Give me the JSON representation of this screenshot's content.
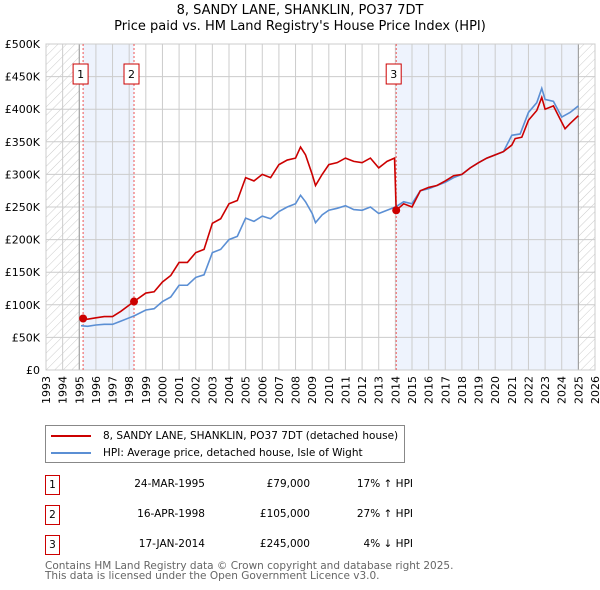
{
  "chart_data": {
    "type": "line",
    "title": "8, SANDY LANE, SHANKLIN, PO37 7DT",
    "subtitle": "Price paid vs. HM Land Registry's House Price Index (HPI)",
    "xlim": [
      1993,
      2026
    ],
    "ylim": [
      0,
      500000
    ],
    "x_ticks": [
      "1993",
      "1994",
      "1995",
      "1996",
      "1997",
      "1998",
      "1999",
      "2000",
      "2001",
      "2002",
      "2003",
      "2004",
      "2005",
      "2006",
      "2007",
      "2008",
      "2009",
      "2010",
      "2011",
      "2012",
      "2013",
      "2014",
      "2015",
      "2016",
      "2017",
      "2018",
      "2019",
      "2020",
      "2021",
      "2022",
      "2023",
      "2024",
      "2025",
      "2026"
    ],
    "y_ticks": [
      {
        "v": 0,
        "label": "£0"
      },
      {
        "v": 50000,
        "label": "£50K"
      },
      {
        "v": 100000,
        "label": "£100K"
      },
      {
        "v": 150000,
        "label": "£150K"
      },
      {
        "v": 200000,
        "label": "£200K"
      },
      {
        "v": 250000,
        "label": "£250K"
      },
      {
        "v": 300000,
        "label": "£300K"
      },
      {
        "v": 350000,
        "label": "£350K"
      },
      {
        "v": 400000,
        "label": "£400K"
      },
      {
        "v": 450000,
        "label": "£450K"
      },
      {
        "v": 500000,
        "label": "£500K"
      }
    ],
    "grid": true,
    "colors": {
      "property": "#cc0000",
      "hpi": "#5b8fd4",
      "band": "#eef3fd"
    },
    "series": [
      {
        "name": "8, SANDY LANE, SHANKLIN, PO37 7DT (detached house)",
        "points": [
          [
            1995.23,
            79
          ],
          [
            1995.5,
            78
          ],
          [
            1996,
            80
          ],
          [
            1996.5,
            82
          ],
          [
            1997,
            82
          ],
          [
            1997.5,
            90
          ],
          [
            1998.29,
            105
          ],
          [
            1999,
            118
          ],
          [
            1999.5,
            120
          ],
          [
            2000,
            135
          ],
          [
            2000.5,
            145
          ],
          [
            2001,
            165
          ],
          [
            2001.5,
            165
          ],
          [
            2002,
            180
          ],
          [
            2002.5,
            185
          ],
          [
            2003,
            225
          ],
          [
            2003.5,
            232
          ],
          [
            2004,
            255
          ],
          [
            2004.5,
            260
          ],
          [
            2005,
            295
          ],
          [
            2005.5,
            290
          ],
          [
            2006,
            300
          ],
          [
            2006.5,
            295
          ],
          [
            2007,
            315
          ],
          [
            2007.5,
            322
          ],
          [
            2008,
            325
          ],
          [
            2008.3,
            342
          ],
          [
            2008.6,
            330
          ],
          [
            2009,
            300
          ],
          [
            2009.2,
            283
          ],
          [
            2009.6,
            300
          ],
          [
            2010,
            315
          ],
          [
            2010.5,
            318
          ],
          [
            2011,
            325
          ],
          [
            2011.5,
            320
          ],
          [
            2012,
            318
          ],
          [
            2012.5,
            325
          ],
          [
            2013,
            310
          ],
          [
            2013.5,
            320
          ],
          [
            2013.95,
            325
          ],
          [
            2014.05,
            245
          ],
          [
            2014.5,
            255
          ],
          [
            2015,
            250
          ],
          [
            2015.5,
            275
          ],
          [
            2016,
            280
          ],
          [
            2016.5,
            283
          ],
          [
            2017,
            290
          ],
          [
            2017.5,
            298
          ],
          [
            2018,
            300
          ],
          [
            2018.5,
            310
          ],
          [
            2019,
            318
          ],
          [
            2019.5,
            325
          ],
          [
            2020,
            330
          ],
          [
            2020.5,
            335
          ],
          [
            2021,
            345
          ],
          [
            2021.2,
            355
          ],
          [
            2021.6,
            357
          ],
          [
            2022,
            383
          ],
          [
            2022.5,
            398
          ],
          [
            2022.8,
            418
          ],
          [
            2023,
            400
          ],
          [
            2023.5,
            405
          ],
          [
            2024,
            380
          ],
          [
            2024.2,
            370
          ],
          [
            2024.5,
            378
          ],
          [
            2025,
            390
          ]
        ]
      },
      {
        "name": "HPI: Average price, detached house, Isle of Wight",
        "points": [
          [
            1995.1,
            68
          ],
          [
            1995.5,
            67
          ],
          [
            1996,
            69
          ],
          [
            1996.5,
            70
          ],
          [
            1997,
            70
          ],
          [
            1997.5,
            75
          ],
          [
            1998.3,
            83
          ],
          [
            1999,
            92
          ],
          [
            1999.5,
            94
          ],
          [
            2000,
            105
          ],
          [
            2000.5,
            112
          ],
          [
            2001,
            130
          ],
          [
            2001.5,
            130
          ],
          [
            2002,
            142
          ],
          [
            2002.5,
            146
          ],
          [
            2003,
            180
          ],
          [
            2003.5,
            185
          ],
          [
            2004,
            200
          ],
          [
            2004.5,
            205
          ],
          [
            2005,
            233
          ],
          [
            2005.5,
            228
          ],
          [
            2006,
            236
          ],
          [
            2006.5,
            232
          ],
          [
            2007,
            243
          ],
          [
            2007.5,
            250
          ],
          [
            2008,
            255
          ],
          [
            2008.3,
            268
          ],
          [
            2008.6,
            258
          ],
          [
            2009,
            240
          ],
          [
            2009.2,
            226
          ],
          [
            2009.6,
            238
          ],
          [
            2010,
            245
          ],
          [
            2010.5,
            248
          ],
          [
            2011,
            252
          ],
          [
            2011.5,
            246
          ],
          [
            2012,
            245
          ],
          [
            2012.5,
            250
          ],
          [
            2013,
            240
          ],
          [
            2013.5,
            245
          ],
          [
            2014,
            250
          ],
          [
            2014.5,
            258
          ],
          [
            2015,
            255
          ],
          [
            2015.5,
            275
          ],
          [
            2016,
            278
          ],
          [
            2016.5,
            283
          ],
          [
            2017,
            288
          ],
          [
            2017.5,
            295
          ],
          [
            2018,
            300
          ],
          [
            2018.5,
            310
          ],
          [
            2019,
            318
          ],
          [
            2019.5,
            325
          ],
          [
            2020,
            330
          ],
          [
            2020.5,
            335
          ],
          [
            2021,
            360
          ],
          [
            2021.5,
            362
          ],
          [
            2022,
            395
          ],
          [
            2022.5,
            410
          ],
          [
            2022.8,
            432
          ],
          [
            2023,
            415
          ],
          [
            2023.5,
            412
          ],
          [
            2024,
            388
          ],
          [
            2024.5,
            395
          ],
          [
            2025,
            405
          ]
        ]
      }
    ],
    "sales": [
      {
        "label": "1",
        "x": 1995.23,
        "y": 79
      },
      {
        "label": "2",
        "x": 1998.29,
        "y": 105
      },
      {
        "label": "3",
        "x": 2014.05,
        "y": 245
      }
    ],
    "hatched_ranges": [
      [
        1993,
        1995
      ],
      [
        2025,
        2026
      ]
    ],
    "shaded_ranges": [
      [
        1995.23,
        1998.29
      ],
      [
        2014.05,
        2025
      ]
    ]
  },
  "legend": {
    "property": "8, SANDY LANE, SHANKLIN, PO37 7DT (detached house)",
    "hpi": "HPI: Average price, detached house, Isle of Wight"
  },
  "transactions": [
    {
      "num": "1",
      "date": "24-MAR-1995",
      "price": "£79,000",
      "hpi": "17% ↑ HPI"
    },
    {
      "num": "2",
      "date": "16-APR-1998",
      "price": "£105,000",
      "hpi": "27% ↑ HPI"
    },
    {
      "num": "3",
      "date": "17-JAN-2014",
      "price": "£245,000",
      "hpi": "4% ↓ HPI"
    }
  ],
  "footer": {
    "line1": "Contains HM Land Registry data © Crown copyright and database right 2025.",
    "line2": "This data is licensed under the Open Government Licence v3.0."
  }
}
